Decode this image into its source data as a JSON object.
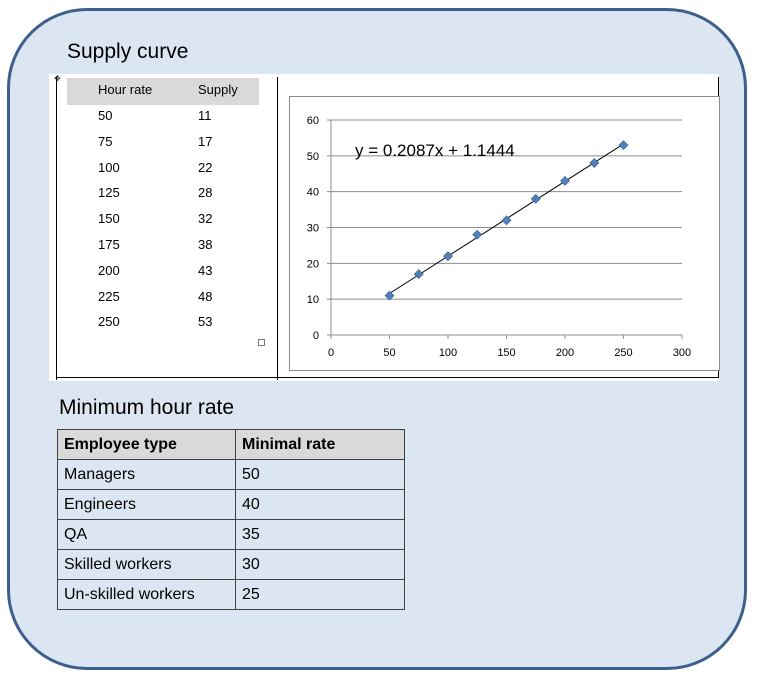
{
  "titles": {
    "supply": "Supply curve",
    "minimum": "Minimum hour rate"
  },
  "supply_table": {
    "headers": [
      "Hour rate",
      "Supply"
    ],
    "rows": [
      [
        "50",
        "11"
      ],
      [
        "75",
        "17"
      ],
      [
        "100",
        "22"
      ],
      [
        "125",
        "28"
      ],
      [
        "150",
        "32"
      ],
      [
        "175",
        "38"
      ],
      [
        "200",
        "43"
      ],
      [
        "225",
        "48"
      ],
      [
        "250",
        "53"
      ]
    ]
  },
  "chart_data": {
    "type": "scatter",
    "x": [
      50,
      75,
      100,
      125,
      150,
      175,
      200,
      225,
      250
    ],
    "y": [
      11,
      17,
      22,
      28,
      32,
      38,
      43,
      48,
      53
    ],
    "trendline": {
      "equation": "y = 0.2087x + 1.1444",
      "slope": 0.2087,
      "intercept": 1.1444
    },
    "xlim": [
      0,
      300
    ],
    "ylim": [
      0,
      60
    ],
    "xticks": [
      "0",
      "50",
      "100",
      "150",
      "200",
      "250",
      "300"
    ],
    "yticks": [
      "0",
      "10",
      "20",
      "30",
      "40",
      "50",
      "60"
    ],
    "grid": "horizontal",
    "marker_color": "#4f81bd",
    "line_color": "#000000"
  },
  "rates_table": {
    "headers": [
      "Employee type",
      "Minimal rate"
    ],
    "rows": [
      [
        "Managers",
        "50"
      ],
      [
        "Engineers",
        "40"
      ],
      [
        "QA",
        "35"
      ],
      [
        "Skilled workers",
        "30"
      ],
      [
        "Un-skilled workers",
        "25"
      ]
    ]
  },
  "colors": {
    "panel_fill": "#dce6f2",
    "panel_border": "#3e5f8c",
    "header_fill": "#d9d9d9"
  }
}
